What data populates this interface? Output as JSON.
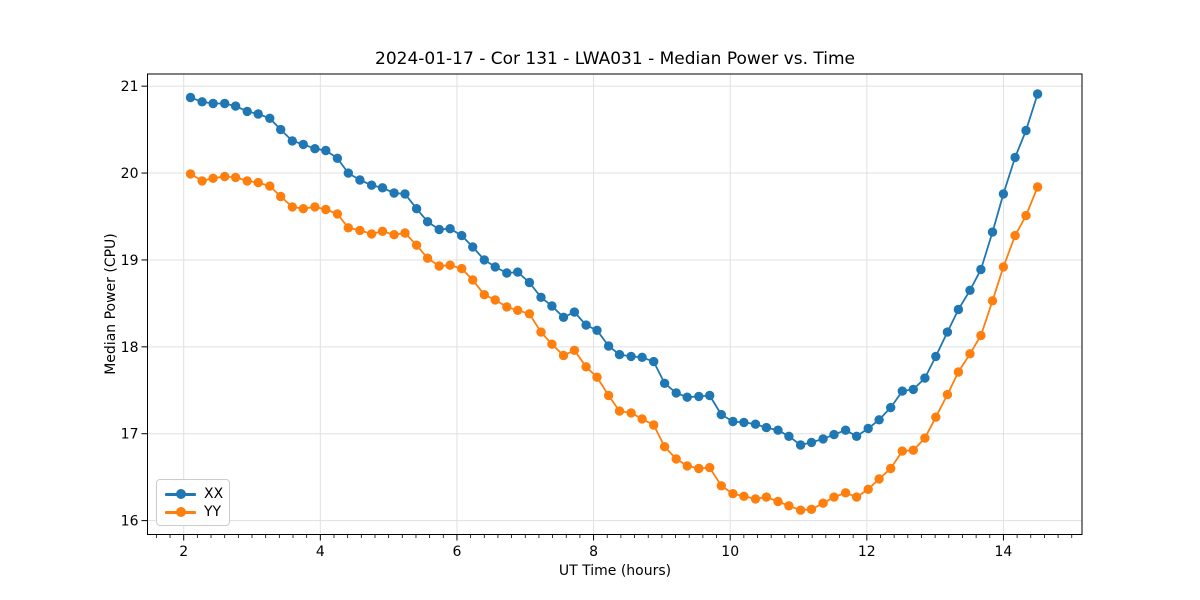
{
  "chart_data": {
    "type": "line",
    "title": "2024-01-17 - Cor 131 - LWA031 - Median Power vs. Time",
    "xlabel": "UT Time (hours)",
    "ylabel": "Median Power (CPU)",
    "xlim": [
      1.47,
      15.15
    ],
    "ylim": [
      15.84,
      21.14
    ],
    "xticks": [
      2,
      4,
      6,
      8,
      10,
      12,
      14
    ],
    "yticks": [
      16,
      17,
      18,
      19,
      20,
      21
    ],
    "x_minor_step": 0.2,
    "grid": true,
    "legend_position": "lower-left",
    "x": [
      2.1,
      2.27,
      2.43,
      2.6,
      2.76,
      2.93,
      3.09,
      3.26,
      3.42,
      3.59,
      3.75,
      3.92,
      4.08,
      4.25,
      4.41,
      4.58,
      4.75,
      4.91,
      5.08,
      5.24,
      5.41,
      5.57,
      5.74,
      5.9,
      6.07,
      6.23,
      6.4,
      6.56,
      6.73,
      6.89,
      7.06,
      7.23,
      7.39,
      7.56,
      7.72,
      7.89,
      8.05,
      8.22,
      8.38,
      8.55,
      8.71,
      8.88,
      9.04,
      9.21,
      9.37,
      9.54,
      9.7,
      9.87,
      10.04,
      10.2,
      10.37,
      10.53,
      10.7,
      10.86,
      11.03,
      11.19,
      11.36,
      11.52,
      11.69,
      11.85,
      12.02,
      12.18,
      12.35,
      12.52,
      12.68,
      12.85,
      13.01,
      13.18,
      13.34,
      13.51,
      13.67,
      13.84,
      14.0,
      14.17,
      14.33,
      14.5
    ],
    "series": [
      {
        "name": "XX",
        "color": "#1f77b4",
        "values": [
          20.87,
          20.82,
          20.8,
          20.8,
          20.77,
          20.71,
          20.68,
          20.63,
          20.5,
          20.37,
          20.33,
          20.28,
          20.26,
          20.17,
          20.0,
          19.92,
          19.86,
          19.83,
          19.77,
          19.76,
          19.59,
          19.44,
          19.35,
          19.36,
          19.28,
          19.15,
          19.0,
          18.92,
          18.85,
          18.86,
          18.74,
          18.57,
          18.47,
          18.34,
          18.4,
          18.25,
          18.19,
          18.01,
          17.91,
          17.89,
          17.88,
          17.83,
          17.58,
          17.47,
          17.42,
          17.43,
          17.44,
          17.22,
          17.14,
          17.13,
          17.11,
          17.07,
          17.04,
          16.97,
          16.87,
          16.9,
          16.94,
          16.99,
          17.04,
          16.97,
          17.06,
          17.16,
          17.3,
          17.49,
          17.51,
          17.64,
          17.89,
          18.17,
          18.43,
          18.65,
          18.89,
          19.32,
          19.76,
          20.18,
          20.49,
          20.91
        ]
      },
      {
        "name": "YY",
        "color": "#ff7f0e",
        "values": [
          19.99,
          19.91,
          19.94,
          19.96,
          19.95,
          19.91,
          19.89,
          19.85,
          19.73,
          19.61,
          19.59,
          19.61,
          19.58,
          19.53,
          19.37,
          19.34,
          19.3,
          19.33,
          19.29,
          19.31,
          19.17,
          19.02,
          18.93,
          18.94,
          18.9,
          18.77,
          18.6,
          18.54,
          18.46,
          18.42,
          18.38,
          18.17,
          18.03,
          17.9,
          17.96,
          17.77,
          17.65,
          17.44,
          17.26,
          17.24,
          17.17,
          17.1,
          16.85,
          16.71,
          16.63,
          16.6,
          16.61,
          16.4,
          16.31,
          16.28,
          16.25,
          16.27,
          16.22,
          16.17,
          16.12,
          16.13,
          16.2,
          16.27,
          16.32,
          16.27,
          16.36,
          16.48,
          16.6,
          16.8,
          16.81,
          16.95,
          17.19,
          17.45,
          17.71,
          17.92,
          18.13,
          18.53,
          18.92,
          19.28,
          19.51,
          19.84
        ]
      }
    ]
  }
}
